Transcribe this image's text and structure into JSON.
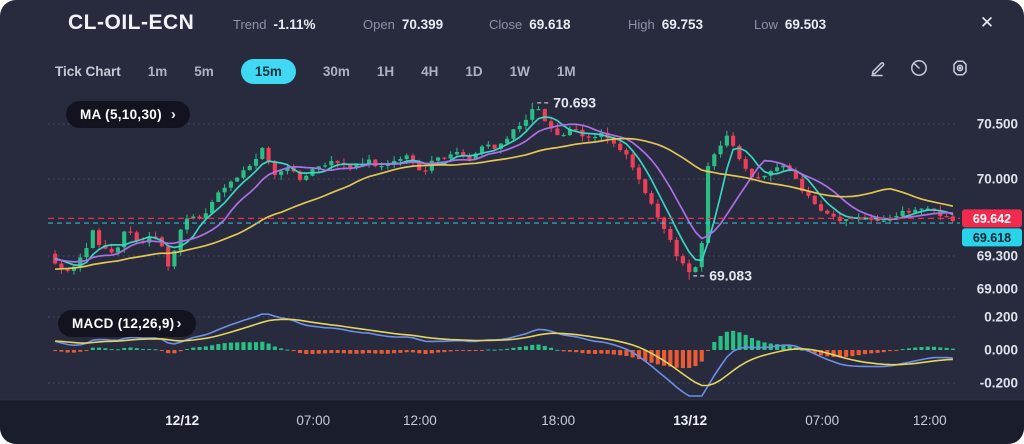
{
  "header": {
    "symbol": "CL-OIL-ECN",
    "stats": [
      {
        "label": "Trend",
        "value": "-1.11%"
      },
      {
        "label": "Open",
        "value": "70.399"
      },
      {
        "label": "Close",
        "value": "69.618"
      },
      {
        "label": "High",
        "value": "69.753"
      },
      {
        "label": "Low",
        "value": "69.503"
      }
    ],
    "close_icon": "✕"
  },
  "toolbar": {
    "timeframes": [
      "Tick Chart",
      "1m",
      "5m",
      "15m",
      "30m",
      "1H",
      "4H",
      "1D",
      "1W",
      "1M"
    ],
    "active": "15m",
    "icons": [
      "draw-icon",
      "timer-icon",
      "settings-icon"
    ]
  },
  "indicators": {
    "ma_label": "MA (5,10,30)",
    "macd_label": "MACD (12,26,9)"
  },
  "chart_data": {
    "type": "candlestick+macd",
    "symbol": "CL-OIL-ECN",
    "interval": "15m",
    "candle_count": 144,
    "ma_periods": [
      5,
      10,
      30
    ],
    "macd_params": [
      12,
      26,
      9
    ],
    "annotations": {
      "high": 70.693,
      "high_label": "70.693",
      "low": 69.083,
      "low_label": "69.083"
    },
    "price_lines": [
      {
        "value": 69.642,
        "label": "69.642",
        "type": "last"
      },
      {
        "value": 69.618,
        "label": "69.618",
        "type": "close"
      }
    ],
    "price_axis": {
      "ticks": [
        70.5,
        70.0,
        69.3,
        69.0
      ],
      "labels": [
        "70.500",
        "70.000",
        "69.300",
        "69.000"
      ]
    },
    "macd_axis": {
      "ticks": [
        0.2,
        0.0,
        -0.2
      ],
      "labels": [
        "0.200",
        "0.000",
        "-0.200"
      ]
    },
    "time_axis": [
      {
        "label": "12/12",
        "t": 0.144,
        "bold": true
      },
      {
        "label": "07:00",
        "t": 0.289,
        "bold": false
      },
      {
        "label": "12:00",
        "t": 0.407,
        "bold": false
      },
      {
        "label": "18:00",
        "t": 0.56,
        "bold": false
      },
      {
        "label": "13/12",
        "t": 0.706,
        "bold": true
      },
      {
        "label": "07:00",
        "t": 0.852,
        "bold": false
      },
      {
        "label": "12:00",
        "t": 0.971,
        "bold": false
      }
    ],
    "price_anchors": [
      [
        0.0,
        69.32
      ],
      [
        0.011,
        69.2
      ],
      [
        0.022,
        69.16
      ],
      [
        0.037,
        69.3
      ],
      [
        0.048,
        69.52
      ],
      [
        0.059,
        69.38
      ],
      [
        0.073,
        69.3
      ],
      [
        0.086,
        69.56
      ],
      [
        0.1,
        69.4
      ],
      [
        0.111,
        69.48
      ],
      [
        0.123,
        69.42
      ],
      [
        0.131,
        69.28
      ],
      [
        0.133,
        69.1
      ],
      [
        0.142,
        69.45
      ],
      [
        0.155,
        69.7
      ],
      [
        0.169,
        69.62
      ],
      [
        0.186,
        69.85
      ],
      [
        0.202,
        69.96
      ],
      [
        0.219,
        70.1
      ],
      [
        0.236,
        70.26
      ],
      [
        0.25,
        70.04
      ],
      [
        0.265,
        70.12
      ],
      [
        0.28,
        69.98
      ],
      [
        0.296,
        70.12
      ],
      [
        0.316,
        70.16
      ],
      [
        0.335,
        70.1
      ],
      [
        0.354,
        70.16
      ],
      [
        0.374,
        70.1
      ],
      [
        0.394,
        70.22
      ],
      [
        0.413,
        70.07
      ],
      [
        0.429,
        70.18
      ],
      [
        0.449,
        70.24
      ],
      [
        0.465,
        70.18
      ],
      [
        0.482,
        70.32
      ],
      [
        0.498,
        70.28
      ],
      [
        0.512,
        70.42
      ],
      [
        0.527,
        70.55
      ],
      [
        0.538,
        70.66
      ],
      [
        0.551,
        70.52
      ],
      [
        0.564,
        70.38
      ],
      [
        0.579,
        70.45
      ],
      [
        0.595,
        70.36
      ],
      [
        0.612,
        70.42
      ],
      [
        0.626,
        70.3
      ],
      [
        0.642,
        70.18
      ],
      [
        0.656,
        69.92
      ],
      [
        0.67,
        69.7
      ],
      [
        0.686,
        69.45
      ],
      [
        0.699,
        69.25
      ],
      [
        0.71,
        69.13
      ],
      [
        0.721,
        69.32
      ],
      [
        0.73,
        70.18
      ],
      [
        0.739,
        70.28
      ],
      [
        0.753,
        70.4
      ],
      [
        0.767,
        70.12
      ],
      [
        0.781,
        69.98
      ],
      [
        0.796,
        70.08
      ],
      [
        0.814,
        70.12
      ],
      [
        0.83,
        69.95
      ],
      [
        0.847,
        69.75
      ],
      [
        0.863,
        69.66
      ],
      [
        0.881,
        69.62
      ],
      [
        0.899,
        69.67
      ],
      [
        0.918,
        69.63
      ],
      [
        0.936,
        69.66
      ],
      [
        0.955,
        69.72
      ],
      [
        0.973,
        69.74
      ],
      [
        0.987,
        69.68
      ],
      [
        1.0,
        69.62
      ]
    ],
    "colors": {
      "background": "#272b3d",
      "grid": "#4a506b",
      "up": "#2abe84",
      "down": "#ef3f58",
      "ma5": "#38d5c2",
      "ma10": "#ad6fe6",
      "ma30": "#e2c552",
      "macd_line": "#6d8fe8",
      "macd_signal": "#e5d45e",
      "hist_up": "#2abe84",
      "hist_down": "#e95b33",
      "last_price_badge": "#f12b4e",
      "close_badge": "#29d3ea",
      "axis_text": "#dfe2ec",
      "time_text": "#c9cdda"
    }
  }
}
